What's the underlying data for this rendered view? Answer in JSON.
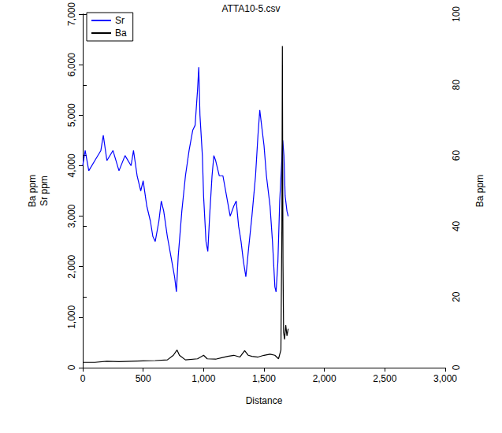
{
  "chart_data": {
    "type": "line",
    "title": "ATTA10-5.csv",
    "xlabel": "Distance",
    "ylabel": [
      "Ba ppm",
      "Sr ppm"
    ],
    "y2label": "Ba ppm",
    "xlim": [
      0,
      3000
    ],
    "xticks": [
      0,
      500,
      1000,
      1500,
      2000,
      2500,
      3000
    ],
    "ylim": [
      0,
      7000
    ],
    "yticks": [
      0,
      1000,
      2000,
      3000,
      4000,
      5000,
      6000,
      7000
    ],
    "y2lim": [
      0,
      100
    ],
    "y2ticks": [
      0,
      20,
      40,
      60,
      80,
      100
    ],
    "grid": false,
    "legend": "top-left",
    "series": [
      {
        "name": "Sr",
        "color": "#0000ff",
        "axis": "y",
        "x": [
          0,
          20,
          50,
          100,
          150,
          170,
          200,
          250,
          300,
          350,
          400,
          420,
          450,
          480,
          500,
          530,
          560,
          580,
          600,
          630,
          650,
          670,
          700,
          730,
          760,
          775,
          790,
          820,
          850,
          880,
          910,
          930,
          950,
          960,
          970,
          990,
          1000,
          1020,
          1035,
          1050,
          1070,
          1085,
          1100,
          1130,
          1160,
          1190,
          1220,
          1250,
          1270,
          1290,
          1310,
          1330,
          1350,
          1370,
          1400,
          1430,
          1450,
          1465,
          1480,
          1500,
          1520,
          1550,
          1570,
          1590,
          1600,
          1615,
          1630,
          1645,
          1655,
          1665,
          1675,
          1690,
          1700
        ],
        "values": [
          4000,
          4300,
          3900,
          4100,
          4300,
          4600,
          4100,
          4300,
          3900,
          4200,
          4000,
          4300,
          3800,
          3500,
          3700,
          3200,
          2900,
          2600,
          2500,
          2900,
          3300,
          3100,
          2600,
          2200,
          1800,
          1500,
          2200,
          3100,
          3800,
          4300,
          4700,
          4800,
          5500,
          5950,
          5000,
          4200,
          3400,
          2500,
          2300,
          3000,
          3800,
          4200,
          4100,
          3800,
          3800,
          3400,
          3000,
          3200,
          3300,
          2800,
          2500,
          2100,
          1800,
          2300,
          3000,
          3800,
          4600,
          5100,
          4800,
          4400,
          3800,
          3200,
          2500,
          1600,
          1500,
          2100,
          3300,
          4000,
          4500,
          4200,
          3400,
          3100,
          3000
        ]
      },
      {
        "name": "Ba",
        "color": "#000000",
        "axis": "y2",
        "x": [
          0,
          100,
          200,
          300,
          400,
          500,
          600,
          700,
          750,
          780,
          800,
          850,
          950,
          1000,
          1030,
          1100,
          1150,
          1200,
          1250,
          1300,
          1340,
          1370,
          1400,
          1450,
          1500,
          1550,
          1590,
          1620,
          1640,
          1648,
          1652,
          1657,
          1662,
          1670,
          1680,
          1690,
          1700
        ],
        "values": [
          1.5,
          1.5,
          1.8,
          1.7,
          1.8,
          1.9,
          2,
          2.2,
          3.5,
          5,
          3.5,
          2.2,
          2.5,
          3.5,
          2.5,
          2.4,
          2.8,
          3.2,
          3.5,
          3,
          4.8,
          3.5,
          3.2,
          3,
          3.5,
          3.8,
          3.5,
          2.5,
          5,
          40,
          91,
          30,
          10,
          8,
          12,
          9,
          11
        ]
      }
    ]
  }
}
